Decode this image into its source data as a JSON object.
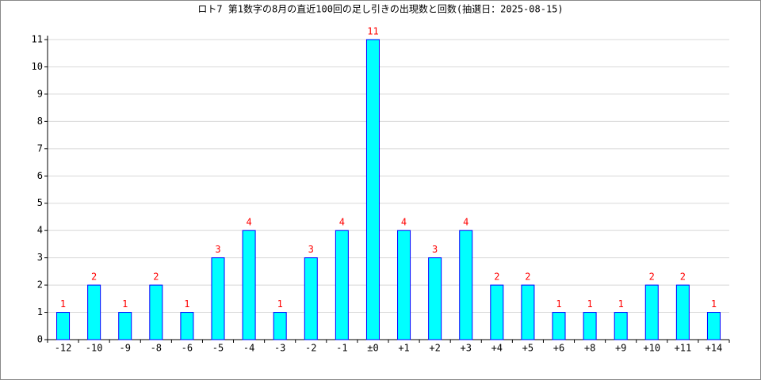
{
  "chart_data": {
    "type": "bar",
    "title": "ロト7 第1数字の8月の直近100回の足し引きの出現数と回数(抽選日：2025-08-15)",
    "categories": [
      "-12",
      "-10",
      "-9",
      "-8",
      "-6",
      "-5",
      "-4",
      "-3",
      "-2",
      "-1",
      "±0",
      "+1",
      "+2",
      "+3",
      "+4",
      "+5",
      "+6",
      "+8",
      "+9",
      "+10",
      "+11",
      "+14"
    ],
    "values": [
      1,
      2,
      1,
      2,
      1,
      3,
      4,
      1,
      3,
      4,
      11,
      4,
      3,
      4,
      2,
      2,
      1,
      1,
      1,
      2,
      2,
      1
    ],
    "color": "#00ffff",
    "edge_color": "#0000ff",
    "label_color": "#ff0000",
    "ylim": [
      0,
      11
    ],
    "yticks": [
      0,
      1,
      2,
      3,
      4,
      5,
      6,
      7,
      8,
      9,
      10,
      11
    ],
    "grid": true
  }
}
